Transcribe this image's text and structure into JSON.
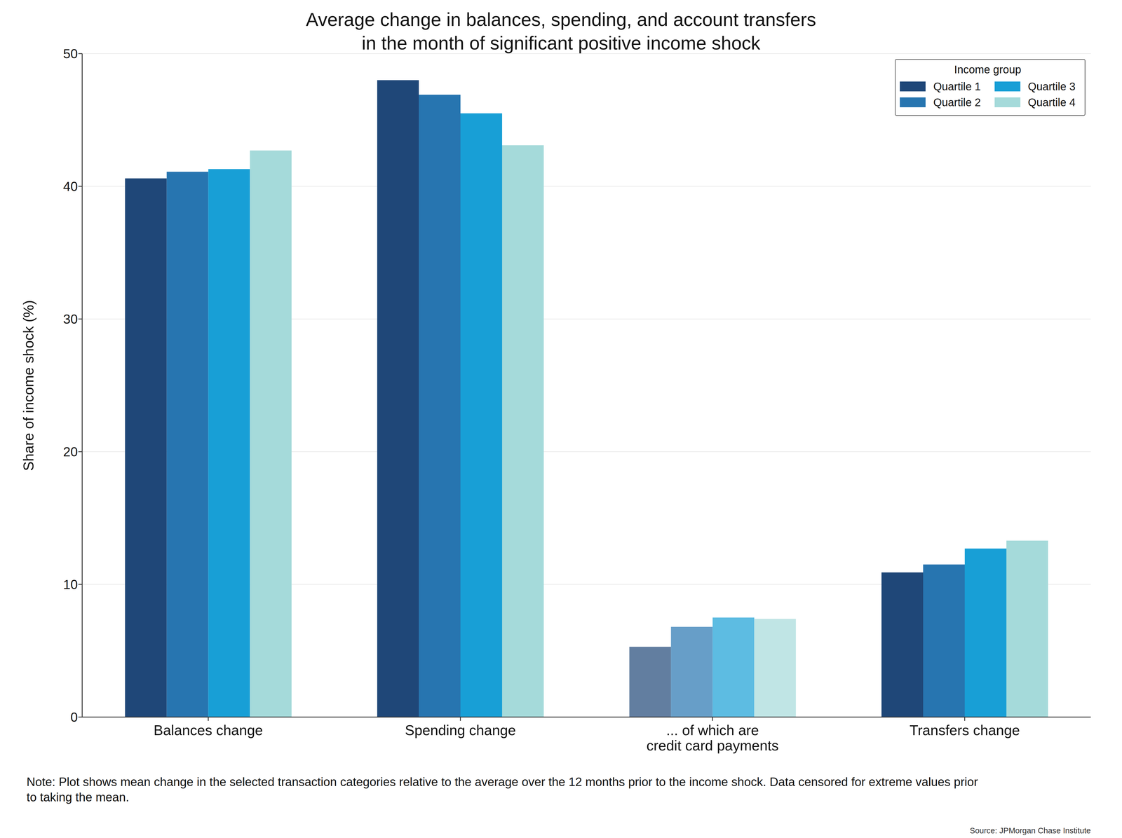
{
  "chart_data": {
    "type": "bar",
    "title": "Average change in balances, spending, and account transfers\nin the month of significant positive income shock",
    "y_label": "Share of income shock (%)",
    "categories": [
      "Balances change",
      "Spending change",
      "... of which are\ncredit card payments",
      "Transfers change"
    ],
    "series": [
      {
        "name": "Quartile 1",
        "color": "#1f4778",
        "values": [
          40.6,
          48.0,
          5.3,
          10.9
        ]
      },
      {
        "name": "Quartile 2",
        "color": "#2775b0",
        "values": [
          41.1,
          46.9,
          6.8,
          11.5
        ]
      },
      {
        "name": "Quartile 3",
        "color": "#189fd6",
        "values": [
          41.3,
          45.5,
          7.5,
          12.7
        ]
      },
      {
        "name": "Quartile 4",
        "color": "#a5dada",
        "values": [
          42.7,
          43.1,
          7.4,
          13.3
        ]
      }
    ],
    "ylim": [
      0,
      50
    ],
    "yticks": [
      0,
      10,
      20,
      30,
      40,
      50
    ],
    "grid": true,
    "legend": "upper right",
    "legend_title": "Income group",
    "note": "Note: Plot shows mean change in the selected transaction categories relative to the average over the 12 months prior to the income shock. Data censored for extreme values prior\nto taking the mean.",
    "source": "Source: JPMorgan Chase Institute"
  }
}
